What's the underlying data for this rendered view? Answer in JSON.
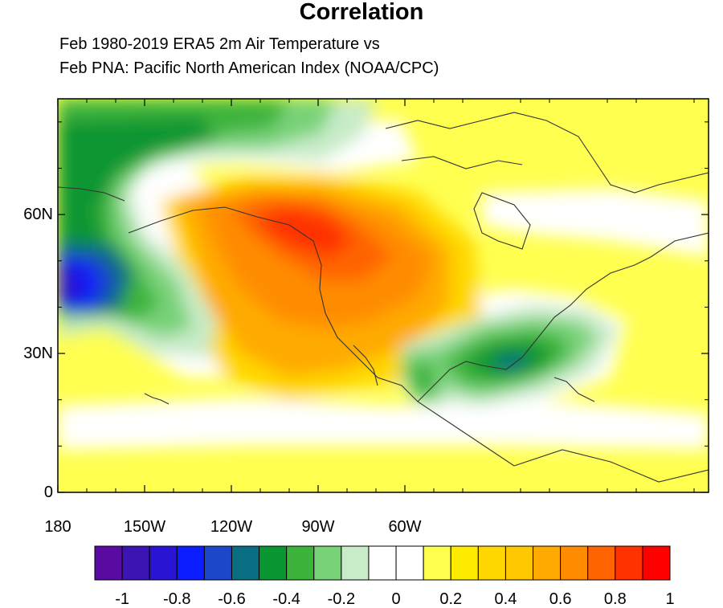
{
  "title": "Correlation",
  "subtitle_line1": "Feb 1980-2019 ERA5 2m Air Temperature vs",
  "subtitle_line2": "Feb PNA: Pacific North American Index (NOAA/CPC)",
  "map": {
    "lon_range": [
      180,
      -45
    ],
    "lat_range": [
      0,
      85
    ],
    "x_ticks": [
      "180",
      "150W",
      "120W",
      "90W",
      "60W"
    ],
    "y_ticks": [
      "0",
      "30N",
      "60N"
    ]
  },
  "colorbar": {
    "colors": [
      "#5a0aa0",
      "#3c14b4",
      "#2814d2",
      "#0a1eff",
      "#1e46c8",
      "#0a6e82",
      "#0a9632",
      "#3cb43c",
      "#78d278",
      "#c8ebc8",
      "#ffffff",
      "#ffffff",
      "#ffff50",
      "#ffeb00",
      "#ffd700",
      "#ffc800",
      "#ffaa00",
      "#ff8c00",
      "#ff6400",
      "#ff3200",
      "#ff0000"
    ],
    "labels": [
      "-1",
      "-0.8",
      "-0.6",
      "-0.4",
      "-0.2",
      "0",
      "0.2",
      "0.4",
      "0.6",
      "0.8",
      "1"
    ]
  }
}
